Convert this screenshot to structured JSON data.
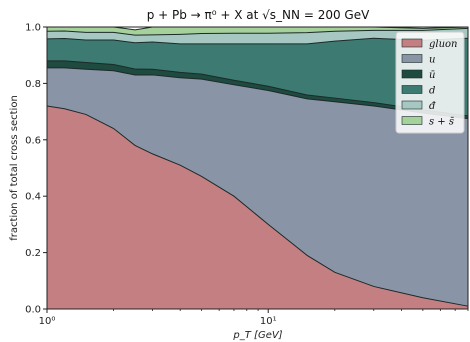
{
  "chart_data": {
    "type": "area",
    "title": "p + Pb → π⁰ + X   at  √s_NN = 200 GeV",
    "xlabel": "p_T [GeV]",
    "ylabel": "fraction of total cross section",
    "xscale": "log",
    "xlim": [
      1,
      80
    ],
    "ylim": [
      0,
      1.0
    ],
    "x_ticks": [
      {
        "value": 1,
        "label": "10⁰"
      },
      {
        "value": 10,
        "label": "10¹"
      }
    ],
    "y_ticks": [
      {
        "value": 0.0,
        "label": "0.0"
      },
      {
        "value": 0.2,
        "label": "0.2"
      },
      {
        "value": 0.4,
        "label": "0.4"
      },
      {
        "value": 0.6,
        "label": "0.6"
      },
      {
        "value": 0.8,
        "label": "0.8"
      },
      {
        "value": 1.0,
        "label": "1.0"
      }
    ],
    "grid": false,
    "legend_position": "top-right",
    "stacked": true,
    "x": [
      1,
      1.2,
      1.5,
      2,
      2.5,
      3,
      4,
      5,
      7,
      10,
      15,
      20,
      30,
      50,
      80
    ],
    "series": [
      {
        "name": "gluon",
        "color": "#c47f82",
        "values": [
          0.72,
          0.71,
          0.69,
          0.64,
          0.58,
          0.55,
          0.51,
          0.47,
          0.4,
          0.3,
          0.19,
          0.13,
          0.08,
          0.04,
          0.01
        ]
      },
      {
        "name": "u",
        "color": "#8a94a7",
        "values": [
          0.135,
          0.145,
          0.16,
          0.205,
          0.25,
          0.28,
          0.31,
          0.345,
          0.395,
          0.475,
          0.555,
          0.605,
          0.64,
          0.655,
          0.665
        ]
      },
      {
        "name": "ū",
        "color": "#1e4a40",
        "values": [
          0.025,
          0.025,
          0.024,
          0.022,
          0.021,
          0.02,
          0.019,
          0.018,
          0.016,
          0.015,
          0.014,
          0.013,
          0.012,
          0.011,
          0.01
        ]
      },
      {
        "name": "d",
        "color": "#3d7b72",
        "values": [
          0.078,
          0.079,
          0.08,
          0.087,
          0.093,
          0.097,
          0.101,
          0.107,
          0.129,
          0.15,
          0.181,
          0.202,
          0.228,
          0.247,
          0.275
        ]
      },
      {
        "name": "đ",
        "color": "#a6c7c2",
        "values": [
          0.027,
          0.027,
          0.027,
          0.027,
          0.027,
          0.025,
          0.034,
          0.037,
          0.038,
          0.038,
          0.04,
          0.035,
          0.028,
          0.035,
          0.035
        ]
      },
      {
        "name": "s + s̄",
        "color": "#a6d19a",
        "values": [
          0.015,
          0.014,
          0.019,
          0.019,
          0.019,
          0.028,
          0.026,
          0.023,
          0.022,
          0.022,
          0.02,
          0.015,
          0.012,
          0.007,
          0.005
        ]
      }
    ]
  }
}
